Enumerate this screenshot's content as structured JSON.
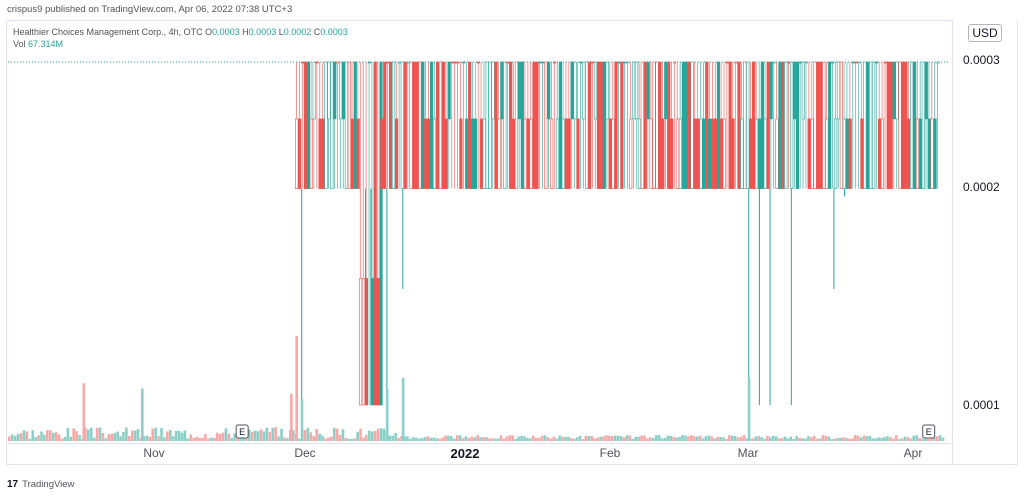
{
  "header": {
    "published_text": "crispus9 published on TradingView.com, Apr 06, 2022 07:38 UTC+3"
  },
  "legend": {
    "symbol": "Healthier Choices Management Corp., 4h, OTC",
    "o_label": "O",
    "o_value": "0.0003",
    "h_label": "H",
    "h_value": "0.0003",
    "l_label": "L",
    "l_value": "0.0002",
    "c_label": "C",
    "c_value": "0.0003",
    "vol_label": "Vol",
    "vol_value": "67.314M"
  },
  "currency_button": "USD",
  "earnings_marker": "E",
  "footer": {
    "brand_logo": "17",
    "brand_text": "TradingView"
  },
  "colors": {
    "up": "#26a69a",
    "down": "#ef5350",
    "up_vol": "#8bd0c8",
    "down_vol": "#f7a9a7",
    "grid": "#e0e3eb",
    "last_price_line": "#26a69a"
  },
  "chart_data": {
    "type": "candlestick",
    "interval": "4h",
    "y_scale": "log",
    "yticks": [
      "0.0003",
      "0.0002",
      "0.0001"
    ],
    "xticks": [
      "Nov",
      "Dec",
      "2022",
      "Feb",
      "Mar",
      "Apr"
    ],
    "x_range": [
      "2021-10-13",
      "2022-04-08"
    ],
    "earnings_dates": [
      "2021-11-26",
      "2022-04-04"
    ],
    "last_price": 0.0003,
    "segments": [
      {
        "start": "2021-12-06",
        "end": "2021-12-18",
        "low": 0.0002,
        "high": 0.0003,
        "mid": 0.00025
      },
      {
        "start": "2021-12-18",
        "end": "2021-12-22",
        "low": 0.0001,
        "high": 0.0003,
        "mid": 0.00015
      },
      {
        "start": "2021-12-22",
        "end": "2022-04-06",
        "low": 0.0002,
        "high": 0.0003,
        "mid": 0.00025
      }
    ],
    "spikes": [
      {
        "date": "2021-12-07",
        "low": 0.0001
      },
      {
        "date": "2021-12-19",
        "low": 0.0001
      },
      {
        "date": "2021-12-20",
        "low": 0.0001
      },
      {
        "date": "2021-12-23",
        "low": 0.0001
      },
      {
        "date": "2021-12-26",
        "low": 0.000145
      },
      {
        "date": "2022-03-01",
        "low": 0.0001
      },
      {
        "date": "2022-03-03",
        "low": 0.0001
      },
      {
        "date": "2022-03-05",
        "low": 0.0001
      },
      {
        "date": "2022-03-09",
        "low": 0.0001
      },
      {
        "date": "2022-03-17",
        "low": 0.000145
      },
      {
        "date": "2022-03-19",
        "low": 0.000195
      }
    ],
    "volume_spikes": [
      {
        "date": "2021-10-27",
        "value": 0.55,
        "dir": "down"
      },
      {
        "date": "2021-11-07",
        "value": 0.5,
        "dir": "up"
      },
      {
        "date": "2021-12-05",
        "value": 0.45,
        "dir": "down"
      },
      {
        "date": "2021-12-06",
        "value": 1.0,
        "dir": "down"
      },
      {
        "date": "2021-12-07",
        "value": 0.4,
        "dir": "up"
      },
      {
        "date": "2021-12-23",
        "value": 0.5,
        "dir": "up"
      },
      {
        "date": "2021-12-26",
        "value": 0.6,
        "dir": "up"
      },
      {
        "date": "2022-03-01",
        "value": 0.6,
        "dir": "up"
      }
    ]
  }
}
